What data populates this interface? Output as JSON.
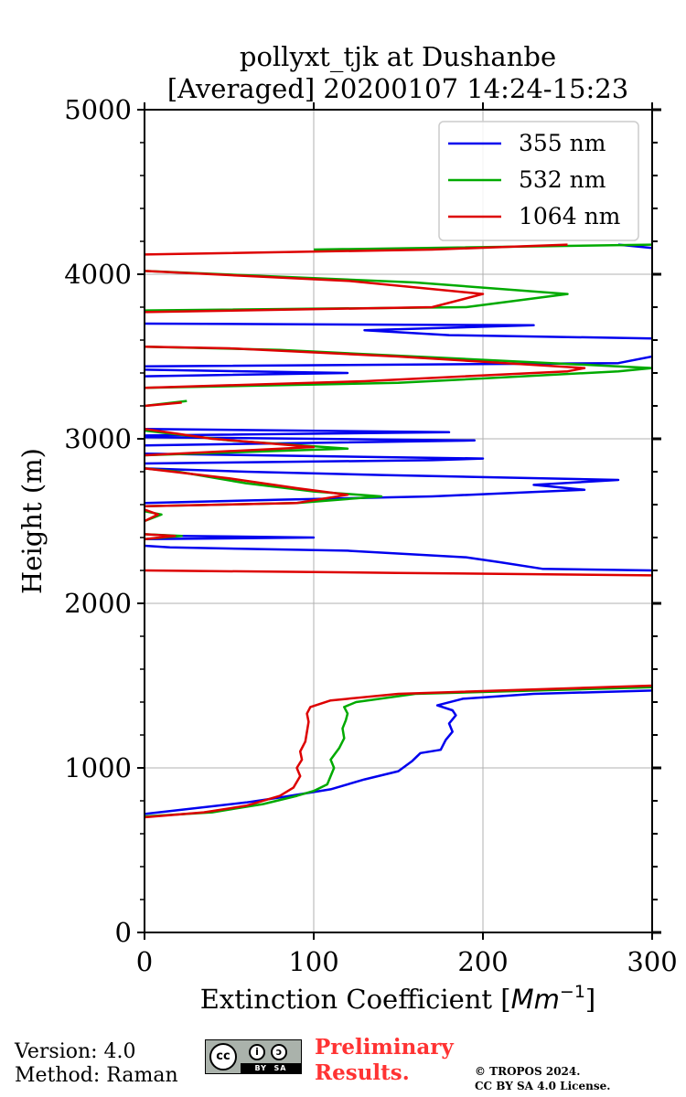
{
  "chart_data": {
    "type": "line",
    "title_line1": "pollyxt_tjk at Dushanbe",
    "title_line2": "[Averaged] 20200107 14:24-15:23",
    "xlabel_text": "Extinction Coefficient [",
    "xlabel_unit": "Mm",
    "xlabel_exp": "−1",
    "xlabel_close": "]",
    "ylabel": "Height (m)",
    "xlim": [
      0,
      300
    ],
    "ylim": [
      0,
      5000
    ],
    "xticks": [
      0,
      100,
      200,
      300
    ],
    "yticks": [
      0,
      1000,
      2000,
      3000,
      4000,
      5000
    ],
    "xtick_labels": [
      "0",
      "100",
      "200",
      "300"
    ],
    "ytick_labels": [
      "0",
      "1000",
      "2000",
      "3000",
      "4000",
      "5000"
    ],
    "grid": true,
    "legend_position": "top-right",
    "series": [
      {
        "name": "355 nm",
        "color": "#0000ee",
        "points": [
          [
            0,
            720
          ],
          [
            60,
            790
          ],
          [
            80,
            820
          ],
          [
            110,
            870
          ],
          [
            130,
            930
          ],
          [
            150,
            980
          ],
          [
            158,
            1040
          ],
          [
            163,
            1090
          ],
          [
            175,
            1110
          ],
          [
            178,
            1170
          ],
          [
            182,
            1220
          ],
          [
            180,
            1270
          ],
          [
            184,
            1320
          ],
          [
            182,
            1350
          ],
          [
            173,
            1380
          ],
          [
            188,
            1420
          ],
          [
            230,
            1450
          ],
          [
            300,
            1470
          ],
          [
            null,
            null
          ],
          [
            300,
            2200
          ],
          [
            235,
            2210
          ],
          [
            210,
            2250
          ],
          [
            190,
            2280
          ],
          [
            120,
            2320
          ],
          [
            15,
            2340
          ],
          [
            0,
            2350
          ],
          [
            null,
            null
          ],
          [
            0,
            2390
          ],
          [
            100,
            2400
          ],
          [
            20,
            2410
          ],
          [
            null,
            null
          ],
          [
            0,
            2610
          ],
          [
            80,
            2630
          ],
          [
            170,
            2650
          ],
          [
            260,
            2690
          ],
          [
            230,
            2720
          ],
          [
            280,
            2750
          ],
          [
            140,
            2780
          ],
          [
            60,
            2800
          ],
          [
            0,
            2820
          ],
          [
            null,
            null
          ],
          [
            0,
            2850
          ],
          [
            170,
            2870
          ],
          [
            200,
            2880
          ],
          [
            0,
            2910
          ],
          [
            null,
            null
          ],
          [
            0,
            2960
          ],
          [
            195,
            2990
          ],
          [
            0,
            3010
          ],
          [
            null,
            null
          ],
          [
            0,
            3020
          ],
          [
            180,
            3040
          ],
          [
            0,
            3060
          ],
          [
            null,
            null
          ],
          [
            0,
            3380
          ],
          [
            120,
            3400
          ],
          [
            0,
            3420
          ],
          [
            null,
            null
          ],
          [
            0,
            3440
          ],
          [
            280,
            3460
          ],
          [
            300,
            3500
          ],
          [
            null,
            null
          ],
          [
            300,
            3610
          ],
          [
            180,
            3630
          ],
          [
            130,
            3660
          ],
          [
            230,
            3690
          ],
          [
            0,
            3700
          ],
          [
            null,
            null
          ],
          [
            300,
            4160
          ],
          [
            280,
            4180
          ]
        ]
      },
      {
        "name": "532 nm",
        "color": "#00aa00",
        "points": [
          [
            0,
            705
          ],
          [
            40,
            730
          ],
          [
            70,
            780
          ],
          [
            90,
            830
          ],
          [
            100,
            860
          ],
          [
            108,
            900
          ],
          [
            110,
            950
          ],
          [
            112,
            1000
          ],
          [
            110,
            1050
          ],
          [
            115,
            1120
          ],
          [
            118,
            1180
          ],
          [
            117,
            1240
          ],
          [
            119,
            1290
          ],
          [
            120,
            1330
          ],
          [
            118,
            1370
          ],
          [
            125,
            1400
          ],
          [
            160,
            1450
          ],
          [
            300,
            1490
          ],
          [
            null,
            null
          ],
          [
            0,
            2390
          ],
          [
            22,
            2410
          ],
          [
            0,
            2420
          ],
          [
            null,
            null
          ],
          [
            0,
            2500
          ],
          [
            10,
            2540
          ],
          [
            0,
            2560
          ],
          [
            null,
            null
          ],
          [
            0,
            2590
          ],
          [
            90,
            2610
          ],
          [
            140,
            2650
          ],
          [
            100,
            2680
          ],
          [
            60,
            2730
          ],
          [
            20,
            2800
          ],
          [
            0,
            2820
          ],
          [
            null,
            null
          ],
          [
            0,
            2900
          ],
          [
            120,
            2940
          ],
          [
            50,
            2990
          ],
          [
            0,
            3050
          ],
          [
            null,
            null
          ],
          [
            0,
            3200
          ],
          [
            25,
            3230
          ],
          [
            null,
            null
          ],
          [
            0,
            3310
          ],
          [
            150,
            3340
          ],
          [
            280,
            3410
          ],
          [
            300,
            3430
          ],
          [
            200,
            3480
          ],
          [
            80,
            3540
          ],
          [
            0,
            3560
          ],
          [
            null,
            null
          ],
          [
            0,
            3780
          ],
          [
            190,
            3800
          ],
          [
            250,
            3880
          ],
          [
            160,
            3950
          ],
          [
            0,
            4020
          ],
          [
            null,
            null
          ],
          [
            100,
            4150
          ],
          [
            300,
            4180
          ]
        ]
      },
      {
        "name": "1064 nm",
        "color": "#dd0000",
        "points": [
          [
            0,
            700
          ],
          [
            35,
            730
          ],
          [
            60,
            770
          ],
          [
            80,
            830
          ],
          [
            88,
            880
          ],
          [
            92,
            950
          ],
          [
            90,
            1000
          ],
          [
            93,
            1050
          ],
          [
            92,
            1100
          ],
          [
            95,
            1160
          ],
          [
            96,
            1220
          ],
          [
            97,
            1280
          ],
          [
            96,
            1330
          ],
          [
            98,
            1370
          ],
          [
            110,
            1410
          ],
          [
            150,
            1450
          ],
          [
            300,
            1500
          ],
          [
            null,
            null
          ],
          [
            300,
            2170
          ],
          [
            150,
            2185
          ],
          [
            0,
            2200
          ],
          [
            null,
            null
          ],
          [
            0,
            2390
          ],
          [
            18,
            2410
          ],
          [
            0,
            2420
          ],
          [
            null,
            null
          ],
          [
            0,
            2500
          ],
          [
            8,
            2540
          ],
          [
            0,
            2570
          ],
          [
            null,
            null
          ],
          [
            0,
            2590
          ],
          [
            90,
            2610
          ],
          [
            120,
            2660
          ],
          [
            90,
            2700
          ],
          [
            50,
            2760
          ],
          [
            0,
            2820
          ],
          [
            null,
            null
          ],
          [
            0,
            2900
          ],
          [
            100,
            2950
          ],
          [
            40,
            3000
          ],
          [
            0,
            3060
          ],
          [
            null,
            null
          ],
          [
            0,
            3200
          ],
          [
            22,
            3220
          ],
          [
            null,
            null
          ],
          [
            0,
            3310
          ],
          [
            130,
            3350
          ],
          [
            250,
            3410
          ],
          [
            260,
            3430
          ],
          [
            150,
            3500
          ],
          [
            50,
            3550
          ],
          [
            0,
            3560
          ],
          [
            null,
            null
          ],
          [
            0,
            3770
          ],
          [
            170,
            3800
          ],
          [
            200,
            3880
          ],
          [
            120,
            3960
          ],
          [
            0,
            4020
          ],
          [
            null,
            null
          ],
          [
            0,
            4120
          ],
          [
            170,
            4150
          ],
          [
            250,
            4180
          ]
        ]
      }
    ]
  },
  "footer": {
    "version": "Version: 4.0",
    "method": "Method: Raman",
    "license_badge_cc": "cc",
    "license_badge_by": "BY",
    "license_badge_sa": "SA",
    "preliminary_line1": "Preliminary",
    "preliminary_line2": "Results.",
    "copyright_line1": "© TROPOS 2024.",
    "copyright_line2": "CC BY SA 4.0 License."
  }
}
